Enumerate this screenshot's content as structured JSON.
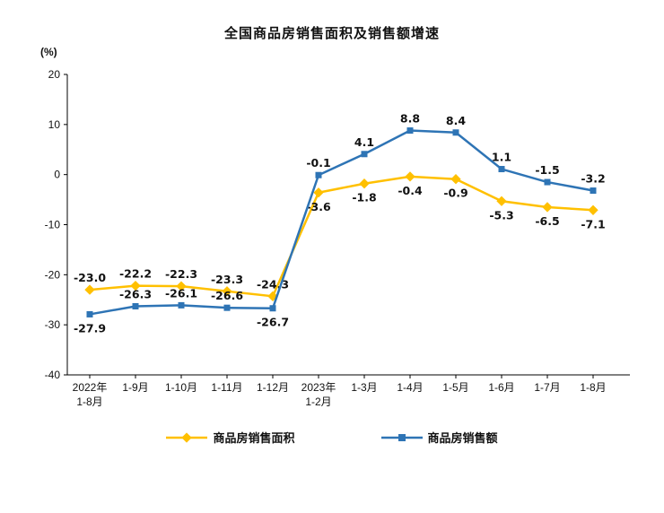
{
  "chart_data": {
    "type": "line",
    "title": "全国商品房销售面积及销售额增速",
    "y_axis": {
      "unit": "(%)",
      "min": -40,
      "max": 20,
      "step": 10
    },
    "grid": false,
    "legend_position": "bottom",
    "categories": [
      [
        "2022年",
        "1-8月"
      ],
      [
        "1-9月"
      ],
      [
        "1-10月"
      ],
      [
        "1-11月"
      ],
      [
        "1-12月"
      ],
      [
        "2023年",
        "1-2月"
      ],
      [
        "1-3月"
      ],
      [
        "1-4月"
      ],
      [
        "1-5月"
      ],
      [
        "1-6月"
      ],
      [
        "1-7月"
      ],
      [
        "1-8月"
      ]
    ],
    "series": [
      {
        "name": "商品房销售面积",
        "color": "#FFC000",
        "marker": "diamond",
        "values": [
          -23.0,
          -22.2,
          -22.3,
          -23.3,
          -24.3,
          -3.6,
          -1.8,
          -0.4,
          -0.9,
          -5.3,
          -6.5,
          -7.1
        ],
        "labels": [
          "-23.0",
          "-22.2",
          "-22.3",
          "-23.3",
          "-24.3",
          "-3.6",
          "-1.8",
          "-0.4",
          "-0.9",
          "-5.3",
          "-6.5",
          "-7.1"
        ],
        "label_side": [
          -1,
          -1,
          -1,
          -1,
          -1,
          1,
          1,
          1,
          1,
          1,
          1,
          1
        ]
      },
      {
        "name": "商品房销售额",
        "color": "#2E74B5",
        "marker": "square",
        "values": [
          -27.9,
          -26.3,
          -26.1,
          -26.6,
          -26.7,
          -0.1,
          4.1,
          8.8,
          8.4,
          1.1,
          -1.5,
          -3.2
        ],
        "labels": [
          "-27.9",
          "-26.3",
          "-26.1",
          "-26.6",
          "-26.7",
          "-0.1",
          "4.1",
          "8.8",
          "8.4",
          "1.1",
          "-1.5",
          "-3.2"
        ],
        "label_side": [
          1,
          -1,
          -1,
          -1,
          1,
          -1,
          -1,
          -1,
          -1,
          -1,
          -1,
          -1
        ]
      }
    ]
  }
}
